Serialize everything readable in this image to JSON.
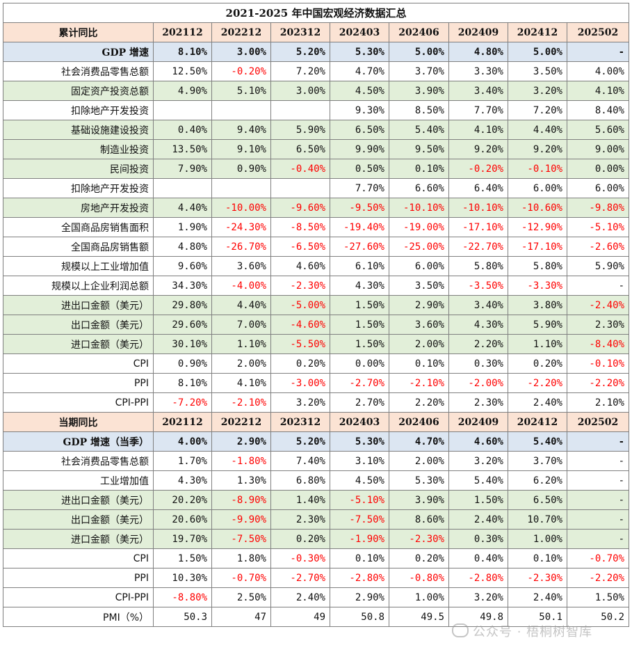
{
  "title": "2021-2025 年中国宏观经济数据汇总",
  "periods": [
    "202112",
    "202212",
    "202312",
    "202403",
    "202406",
    "202409",
    "202412",
    "202502"
  ],
  "sections": [
    {
      "header": "累计同比",
      "rows": [
        {
          "label": "GDP 增速",
          "style": "gdp",
          "values": [
            "8.10%",
            "3.00%",
            "5.20%",
            "5.30%",
            "5.00%",
            "4.80%",
            "5.00%",
            "-"
          ]
        },
        {
          "label": "社会消费品零售总额",
          "style": "white",
          "values": [
            "12.50%",
            "-0.20%",
            "7.20%",
            "4.70%",
            "3.70%",
            "3.30%",
            "3.50%",
            "4.00%"
          ]
        },
        {
          "label": "固定资产投资总额",
          "style": "green",
          "values": [
            "4.90%",
            "5.10%",
            "3.00%",
            "4.50%",
            "3.90%",
            "3.40%",
            "3.20%",
            "4.10%"
          ]
        },
        {
          "label": "扣除地产开发投资",
          "style": "white",
          "values": [
            "",
            "",
            "",
            "9.30%",
            "8.50%",
            "7.70%",
            "7.20%",
            "8.40%"
          ]
        },
        {
          "label": "基础设施建设投资",
          "style": "green",
          "values": [
            "0.40%",
            "9.40%",
            "5.90%",
            "6.50%",
            "5.40%",
            "4.10%",
            "4.40%",
            "5.60%"
          ]
        },
        {
          "label": "制造业投资",
          "style": "green",
          "values": [
            "13.50%",
            "9.10%",
            "6.50%",
            "9.90%",
            "9.50%",
            "9.20%",
            "9.20%",
            "9.00%"
          ]
        },
        {
          "label": "民间投资",
          "style": "green",
          "values": [
            "7.90%",
            "0.90%",
            "-0.40%",
            "0.50%",
            "0.10%",
            "-0.20%",
            "-0.10%",
            "0.00%"
          ]
        },
        {
          "label": "扣除地产开发投资",
          "style": "white",
          "values": [
            "",
            "",
            "",
            "7.70%",
            "6.60%",
            "6.40%",
            "6.00%",
            "6.00%"
          ]
        },
        {
          "label": "房地产开发投资",
          "style": "green",
          "values": [
            "4.40%",
            "-10.00%",
            "-9.60%",
            "-9.50%",
            "-10.10%",
            "-10.10%",
            "-10.60%",
            "-9.80%"
          ]
        },
        {
          "label": "全国商品房销售面积",
          "style": "white",
          "values": [
            "1.90%",
            "-24.30%",
            "-8.50%",
            "-19.40%",
            "-19.00%",
            "-17.10%",
            "-12.90%",
            "-5.10%"
          ]
        },
        {
          "label": "全国商品房销售额",
          "style": "white",
          "values": [
            "4.80%",
            "-26.70%",
            "-6.50%",
            "-27.60%",
            "-25.00%",
            "-22.70%",
            "-17.10%",
            "-2.60%"
          ]
        },
        {
          "label": "规模以上工业增加值",
          "style": "white",
          "values": [
            "9.60%",
            "3.60%",
            "4.60%",
            "6.10%",
            "6.00%",
            "5.80%",
            "5.80%",
            "5.90%"
          ]
        },
        {
          "label": "规模以上企业利润总额",
          "style": "white",
          "values": [
            "34.30%",
            "-4.00%",
            "-2.30%",
            "4.30%",
            "3.50%",
            "-3.50%",
            "-3.30%",
            "-"
          ]
        },
        {
          "label": "进出口金额（美元）",
          "style": "green",
          "values": [
            "29.80%",
            "4.40%",
            "-5.00%",
            "1.50%",
            "2.90%",
            "3.40%",
            "3.80%",
            "-2.40%"
          ]
        },
        {
          "label": "出口金额（美元）",
          "style": "green",
          "values": [
            "29.60%",
            "7.00%",
            "-4.60%",
            "1.50%",
            "3.60%",
            "4.30%",
            "5.90%",
            "2.30%"
          ]
        },
        {
          "label": "进口金额（美元）",
          "style": "green",
          "values": [
            "30.10%",
            "1.10%",
            "-5.50%",
            "1.50%",
            "2.00%",
            "2.20%",
            "1.10%",
            "-8.40%"
          ]
        },
        {
          "label": "CPI",
          "style": "white",
          "values": [
            "0.90%",
            "2.00%",
            "0.20%",
            "0.00%",
            "0.10%",
            "0.30%",
            "0.20%",
            "-0.10%"
          ]
        },
        {
          "label": "PPI",
          "style": "white",
          "values": [
            "8.10%",
            "4.10%",
            "-3.00%",
            "-2.70%",
            "-2.10%",
            "-2.00%",
            "-2.20%",
            "-2.20%"
          ]
        },
        {
          "label": "CPI-PPI",
          "style": "white",
          "values": [
            "-7.20%",
            "-2.10%",
            "3.20%",
            "2.70%",
            "2.20%",
            "2.30%",
            "2.40%",
            "2.10%"
          ]
        }
      ]
    },
    {
      "header": "当期同比",
      "rows": [
        {
          "label": "GDP 增速（当季）",
          "style": "gdp",
          "values": [
            "4.00%",
            "2.90%",
            "5.20%",
            "5.30%",
            "4.70%",
            "4.60%",
            "5.40%",
            "-"
          ]
        },
        {
          "label": "社会消费品零售总额",
          "style": "white",
          "values": [
            "1.70%",
            "-1.80%",
            "7.40%",
            "3.10%",
            "2.00%",
            "3.20%",
            "3.70%",
            "-"
          ]
        },
        {
          "label": "工业增加值",
          "style": "white",
          "values": [
            "4.30%",
            "1.30%",
            "6.80%",
            "4.50%",
            "5.30%",
            "5.40%",
            "6.20%",
            "-"
          ]
        },
        {
          "label": "进出口金额（美元）",
          "style": "green",
          "values": [
            "20.20%",
            "-8.90%",
            "1.40%",
            "-5.10%",
            "3.90%",
            "1.50%",
            "6.50%",
            "-"
          ]
        },
        {
          "label": "出口金额（美元）",
          "style": "green",
          "values": [
            "20.60%",
            "-9.90%",
            "2.30%",
            "-7.50%",
            "8.60%",
            "2.40%",
            "10.70%",
            "-"
          ]
        },
        {
          "label": "进口金额（美元）",
          "style": "green",
          "values": [
            "19.70%",
            "-7.50%",
            "0.20%",
            "-1.90%",
            "-2.30%",
            "0.30%",
            "1.00%",
            "-"
          ]
        },
        {
          "label": "CPI",
          "style": "white",
          "values": [
            "1.50%",
            "1.80%",
            "-0.30%",
            "0.10%",
            "0.20%",
            "0.40%",
            "0.10%",
            "-0.70%"
          ]
        },
        {
          "label": "PPI",
          "style": "white",
          "values": [
            "10.30%",
            "-0.70%",
            "-2.70%",
            "-2.80%",
            "-0.80%",
            "-2.80%",
            "-2.30%",
            "-2.20%"
          ]
        },
        {
          "label": "CPI-PPI",
          "style": "white",
          "values": [
            "-8.80%",
            "2.50%",
            "2.40%",
            "2.90%",
            "1.00%",
            "3.20%",
            "2.40%",
            "1.50%"
          ]
        },
        {
          "label": "PMI（%）",
          "style": "white",
          "values": [
            "50.3",
            "47",
            "49",
            "50.8",
            "49.5",
            "49.8",
            "50.1",
            "50.2"
          ]
        }
      ]
    }
  ],
  "watermark": "公众号 · 梧桐树智库",
  "colors": {
    "header_bg": "#fbe3d4",
    "gdp_bg": "#dce6f2",
    "green_bg": "#e2efd9",
    "negative": "#ff0000"
  }
}
